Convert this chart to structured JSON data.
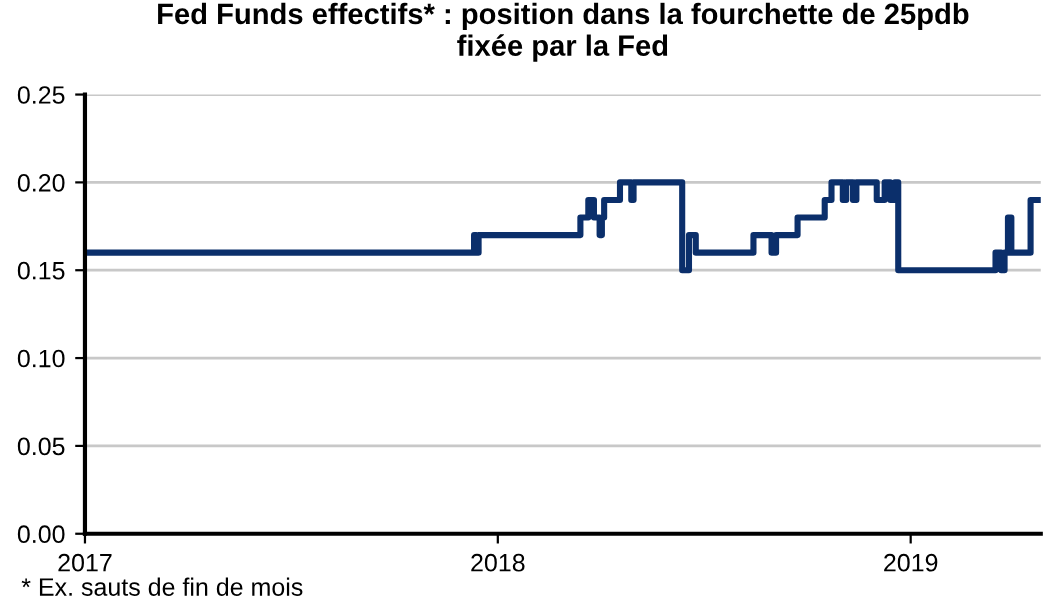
{
  "chart_data": {
    "type": "step",
    "title": "Fed Funds effectifs* : position dans la fourchette de 25pdb\nfixée par la Fed",
    "x": [
      "2017-01-01",
      "2017-12-11",
      "2017-12-13",
      "2017-12-15",
      "2018-03-15",
      "2018-03-22",
      "2018-03-27",
      "2018-04-01",
      "2018-04-03",
      "2018-04-05",
      "2018-04-19",
      "2018-04-29",
      "2018-05-01",
      "2018-06-13",
      "2018-06-19",
      "2018-06-25",
      "2018-08-15",
      "2018-08-31",
      "2018-09-04",
      "2018-09-23",
      "2018-10-17",
      "2018-10-23",
      "2018-11-02",
      "2018-11-05",
      "2018-11-11",
      "2018-11-14",
      "2018-12-02",
      "2018-12-09",
      "2018-12-14",
      "2018-12-18",
      "2018-12-21",
      "2019-03-17",
      "2019-03-22",
      "2019-03-25",
      "2019-03-28",
      "2019-03-31",
      "2019-04-17",
      "2019-04-26"
    ],
    "series": [
      {
        "color": "#0b2f6b",
        "values": [
          0.16,
          0.17,
          0.16,
          0.17,
          0.18,
          0.19,
          0.18,
          0.17,
          0.18,
          0.19,
          0.2,
          0.19,
          0.2,
          0.15,
          0.17,
          0.16,
          0.17,
          0.16,
          0.17,
          0.18,
          0.19,
          0.2,
          0.19,
          0.2,
          0.19,
          0.2,
          0.19,
          0.2,
          0.19,
          0.2,
          0.15,
          0.16,
          0.15,
          0.16,
          0.18,
          0.16,
          0.19,
          0.19
        ]
      }
    ],
    "xlim": [
      "2017-01-01",
      "2019-04-26"
    ],
    "xticks": [
      {
        "value": "2017-01-01",
        "label": "2017"
      },
      {
        "value": "2018-01-01",
        "label": "2018"
      },
      {
        "value": "2019-01-01",
        "label": "2019"
      }
    ],
    "ylim": [
      0,
      0.25
    ],
    "yticks": [
      {
        "value": 0,
        "label": "0.00"
      },
      {
        "value": 0.05,
        "label": "0.05"
      },
      {
        "value": 0.1,
        "label": "0.10"
      },
      {
        "value": 0.15,
        "label": "0.15"
      },
      {
        "value": 0.2,
        "label": "0.20"
      },
      {
        "value": 0.25,
        "label": "0.25"
      }
    ],
    "grid": "y",
    "annotations": [
      "* Ex. sauts de fin de mois"
    ]
  }
}
